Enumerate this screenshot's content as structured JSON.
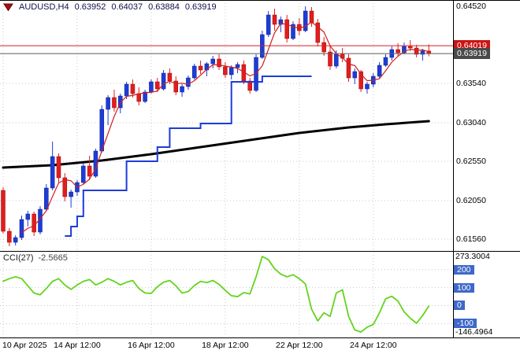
{
  "header": {
    "symbol_period": "AUDUSD,H4",
    "open": "0.63952",
    "high": "0.64037",
    "low": "0.63884",
    "close": "0.63919"
  },
  "colors": {
    "up": "#1d3cd8",
    "down": "#e51c1c",
    "grid": "#c9c9c9",
    "cci_level": "#c6c6cf",
    "badge_blue": "#3e68c9",
    "badge_red": "#cc1414",
    "badge_dark": "#4a4a4a",
    "header_text": "#10104a",
    "border": "#000000"
  },
  "main_chart": {
    "price_axis_labels": [
      {
        "text": "0.64520",
        "price": 0.6452,
        "grid": false
      },
      {
        "text": "0.63540",
        "price": 0.6354,
        "grid": true
      },
      {
        "text": "0.63040",
        "price": 0.6304,
        "grid": true
      },
      {
        "text": "0.62550",
        "price": 0.6255,
        "grid": true
      },
      {
        "text": "0.62050",
        "price": 0.6205,
        "grid": true
      },
      {
        "text": "0.61560",
        "price": 0.6156,
        "grid": true
      }
    ],
    "ask_badge": {
      "text": "0.64019",
      "price": 0.64019
    },
    "bid_badge": {
      "text": "0.63919",
      "price": 0.63919
    }
  },
  "time_axis": {
    "labels": [
      {
        "text": "10 Apr 2025",
        "index": 0
      },
      {
        "text": "14 Apr 12:00",
        "index": 12
      },
      {
        "text": "16 Apr 12:00",
        "index": 24
      },
      {
        "text": "18 Apr 12:00",
        "index": 36
      },
      {
        "text": "22 Apr 12:00",
        "index": 48
      },
      {
        "text": "24 Apr 12:00",
        "index": 60
      }
    ]
  },
  "cci_panel": {
    "label": "CCI(27)",
    "value": "-2.5665",
    "max_label": "273.3004",
    "min_label": "-146.4964",
    "levels": [
      200,
      100,
      0,
      -100
    ]
  },
  "chart_data": [
    {
      "type": "candlestick",
      "title": "AUDUSD,H4",
      "ylim": [
        0.6142,
        0.6452
      ],
      "y_ticks": [
        0.6452,
        0.6354,
        0.6304,
        0.6255,
        0.6205,
        0.6156
      ],
      "x_tick_labels": [
        "10 Apr 2025",
        "14 Apr 12:00",
        "16 Apr 12:00",
        "18 Apr 12:00",
        "22 Apr 12:00",
        "24 Apr 12:00"
      ],
      "candles": [
        [
          0.6218,
          0.6222,
          0.6163,
          0.6166
        ],
        [
          0.6166,
          0.617,
          0.6147,
          0.6152
        ],
        [
          0.6152,
          0.6161,
          0.6148,
          0.6158
        ],
        [
          0.6158,
          0.6186,
          0.6155,
          0.6181
        ],
        [
          0.6181,
          0.6192,
          0.6172,
          0.6188
        ],
        [
          0.6188,
          0.6191,
          0.616,
          0.6165
        ],
        [
          0.6165,
          0.6198,
          0.6162,
          0.6194
        ],
        [
          0.6194,
          0.6226,
          0.6192,
          0.6221
        ],
        [
          0.6221,
          0.628,
          0.6218,
          0.6261
        ],
        [
          0.6261,
          0.6265,
          0.6227,
          0.6234
        ],
        [
          0.6234,
          0.624,
          0.6204,
          0.621
        ],
        [
          0.621,
          0.6219,
          0.6196,
          0.6216
        ],
        [
          0.6216,
          0.6231,
          0.6211,
          0.6228
        ],
        [
          0.6228,
          0.6252,
          0.6226,
          0.6249
        ],
        [
          0.6249,
          0.6262,
          0.6231,
          0.6236
        ],
        [
          0.6236,
          0.6271,
          0.6234,
          0.6268
        ],
        [
          0.6268,
          0.6326,
          0.6266,
          0.6321
        ],
        [
          0.6321,
          0.6339,
          0.6301,
          0.6336
        ],
        [
          0.6336,
          0.6346,
          0.6318,
          0.6323
        ],
        [
          0.6323,
          0.6341,
          0.6316,
          0.6338
        ],
        [
          0.6338,
          0.6356,
          0.6334,
          0.6353
        ],
        [
          0.6353,
          0.6359,
          0.6336,
          0.6341
        ],
        [
          0.6341,
          0.6349,
          0.6326,
          0.6331
        ],
        [
          0.6331,
          0.6346,
          0.6329,
          0.6343
        ],
        [
          0.6343,
          0.6359,
          0.6341,
          0.6356
        ],
        [
          0.6356,
          0.6361,
          0.6343,
          0.6347
        ],
        [
          0.6347,
          0.6371,
          0.6345,
          0.6367
        ],
        [
          0.6367,
          0.6373,
          0.6353,
          0.6357
        ],
        [
          0.6357,
          0.6363,
          0.6339,
          0.6343
        ],
        [
          0.6343,
          0.6353,
          0.6337,
          0.635
        ],
        [
          0.635,
          0.6364,
          0.6346,
          0.6361
        ],
        [
          0.6361,
          0.6379,
          0.6359,
          0.6376
        ],
        [
          0.6376,
          0.6383,
          0.6366,
          0.6371
        ],
        [
          0.6371,
          0.6381,
          0.6363,
          0.6379
        ],
        [
          0.6379,
          0.6389,
          0.6373,
          0.6385
        ],
        [
          0.6385,
          0.6391,
          0.6371,
          0.6375
        ],
        [
          0.6375,
          0.6381,
          0.6361,
          0.6365
        ],
        [
          0.6365,
          0.6377,
          0.6359,
          0.6374
        ],
        [
          0.6374,
          0.6381,
          0.6367,
          0.6378
        ],
        [
          0.6378,
          0.6383,
          0.6353,
          0.6357
        ],
        [
          0.6357,
          0.6361,
          0.6341,
          0.6345
        ],
        [
          0.6345,
          0.6391,
          0.6343,
          0.6387
        ],
        [
          0.6387,
          0.6421,
          0.6385,
          0.6416
        ],
        [
          0.6416,
          0.6446,
          0.6413,
          0.6441
        ],
        [
          0.6441,
          0.6449,
          0.6421,
          0.6429
        ],
        [
          0.6429,
          0.6439,
          0.6419,
          0.6435
        ],
        [
          0.6435,
          0.6441,
          0.6406,
          0.6411
        ],
        [
          0.6411,
          0.6433,
          0.6409,
          0.6429
        ],
        [
          0.6429,
          0.6437,
          0.6415,
          0.6421
        ],
        [
          0.6421,
          0.6452,
          0.6419,
          0.6446
        ],
        [
          0.6446,
          0.6451,
          0.6426,
          0.6431
        ],
        [
          0.6431,
          0.6436,
          0.6401,
          0.6406
        ],
        [
          0.6406,
          0.6413,
          0.6389,
          0.6394
        ],
        [
          0.6394,
          0.6401,
          0.6371,
          0.6376
        ],
        [
          0.6376,
          0.6396,
          0.6373,
          0.6391
        ],
        [
          0.6391,
          0.6399,
          0.6381,
          0.6386
        ],
        [
          0.6386,
          0.6391,
          0.6356,
          0.6361
        ],
        [
          0.6361,
          0.6373,
          0.6353,
          0.6369
        ],
        [
          0.6369,
          0.6371,
          0.6343,
          0.6347
        ],
        [
          0.6347,
          0.6356,
          0.6341,
          0.6353
        ],
        [
          0.6353,
          0.6367,
          0.6349,
          0.6363
        ],
        [
          0.6363,
          0.6381,
          0.6361,
          0.6377
        ],
        [
          0.6377,
          0.6391,
          0.6375,
          0.6387
        ],
        [
          0.6387,
          0.6401,
          0.6383,
          0.6397
        ],
        [
          0.6397,
          0.6405,
          0.6389,
          0.6393
        ],
        [
          0.6393,
          0.6406,
          0.6391,
          0.6401
        ],
        [
          0.6401,
          0.6409,
          0.6395,
          0.6399
        ],
        [
          0.6399,
          0.6403,
          0.6387,
          0.6391
        ],
        [
          0.6391,
          0.6398,
          0.6383,
          0.63952
        ],
        [
          0.63952,
          0.64037,
          0.63884,
          0.63919
        ]
      ],
      "overlays": {
        "ma_fast": {
          "type": "sma",
          "period": 4,
          "color": "#d02020"
        },
        "step_line": {
          "color": "#1d3cd8",
          "segments": [
            [
              10,
              11,
              0.616
            ],
            [
              11,
              12,
              0.6172
            ],
            [
              12,
              13,
              0.6185
            ],
            [
              13,
              20,
              0.6218
            ],
            [
              20,
              25,
              0.6255
            ],
            [
              25,
              27,
              0.6273
            ],
            [
              27,
              32,
              0.6297
            ],
            [
              32,
              37,
              0.6303
            ],
            [
              37,
              42,
              0.6356
            ],
            [
              42,
              50,
              0.6363
            ]
          ]
        },
        "ma_slow": {
          "color": "#000000",
          "points": [
            [
              0,
              0.6247
            ],
            [
              8,
              0.625
            ],
            [
              16,
              0.6256
            ],
            [
              24,
              0.6264
            ],
            [
              32,
              0.6273
            ],
            [
              40,
              0.6282
            ],
            [
              48,
              0.6291
            ],
            [
              56,
              0.6298
            ],
            [
              62,
              0.6302
            ],
            [
              69,
              0.6306
            ]
          ]
        },
        "ask_line": {
          "price": 0.64019,
          "color": "#d81f1f"
        },
        "bid_line": {
          "price": 0.63919,
          "color": "#5a5a5a"
        }
      }
    },
    {
      "type": "line",
      "title": "CCI(27)",
      "current_value": -2.5665,
      "color": "#64d41e",
      "ylim": [
        -146.4964,
        273.3004
      ],
      "levels": [
        200,
        100,
        0,
        -100
      ],
      "values": [
        135,
        150,
        160,
        150,
        110,
        70,
        60,
        95,
        135,
        150,
        115,
        90,
        115,
        135,
        145,
        115,
        130,
        150,
        135,
        115,
        130,
        140,
        95,
        70,
        68,
        105,
        130,
        140,
        110,
        70,
        78,
        112,
        135,
        128,
        140,
        118,
        85,
        55,
        50,
        72,
        65,
        160,
        273.3,
        255,
        205,
        175,
        160,
        172,
        150,
        120,
        -20,
        -85,
        -40,
        -60,
        70,
        88,
        -60,
        -135,
        -146.5,
        -120,
        -105,
        -40,
        38,
        52,
        25,
        -35,
        -70,
        -98,
        -55,
        -2.5665
      ]
    }
  ]
}
